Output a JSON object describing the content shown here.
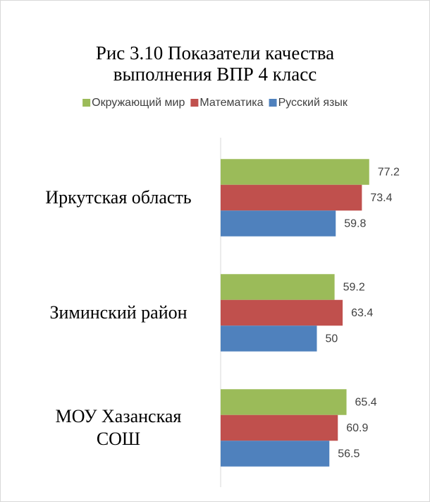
{
  "chart_data": {
    "type": "bar",
    "orientation": "horizontal",
    "title": "Рис 3.10 Показатели качества выполнения ВПР 4 класс",
    "categories": [
      "Иркутская область",
      "Зиминский район",
      "МОУ Хазанская СОШ"
    ],
    "series": [
      {
        "name": "Окружающий мир",
        "color": "#9bbb59",
        "values": [
          77.2,
          59.2,
          65.4
        ]
      },
      {
        "name": "Математика",
        "color": "#c0504d",
        "values": [
          73.4,
          63.4,
          60.9
        ]
      },
      {
        "name": "Русский язык",
        "color": "#4f81bd",
        "values": [
          59.8,
          50,
          56.5
        ]
      }
    ],
    "xlim": [
      0,
      100
    ],
    "legend": "top"
  }
}
